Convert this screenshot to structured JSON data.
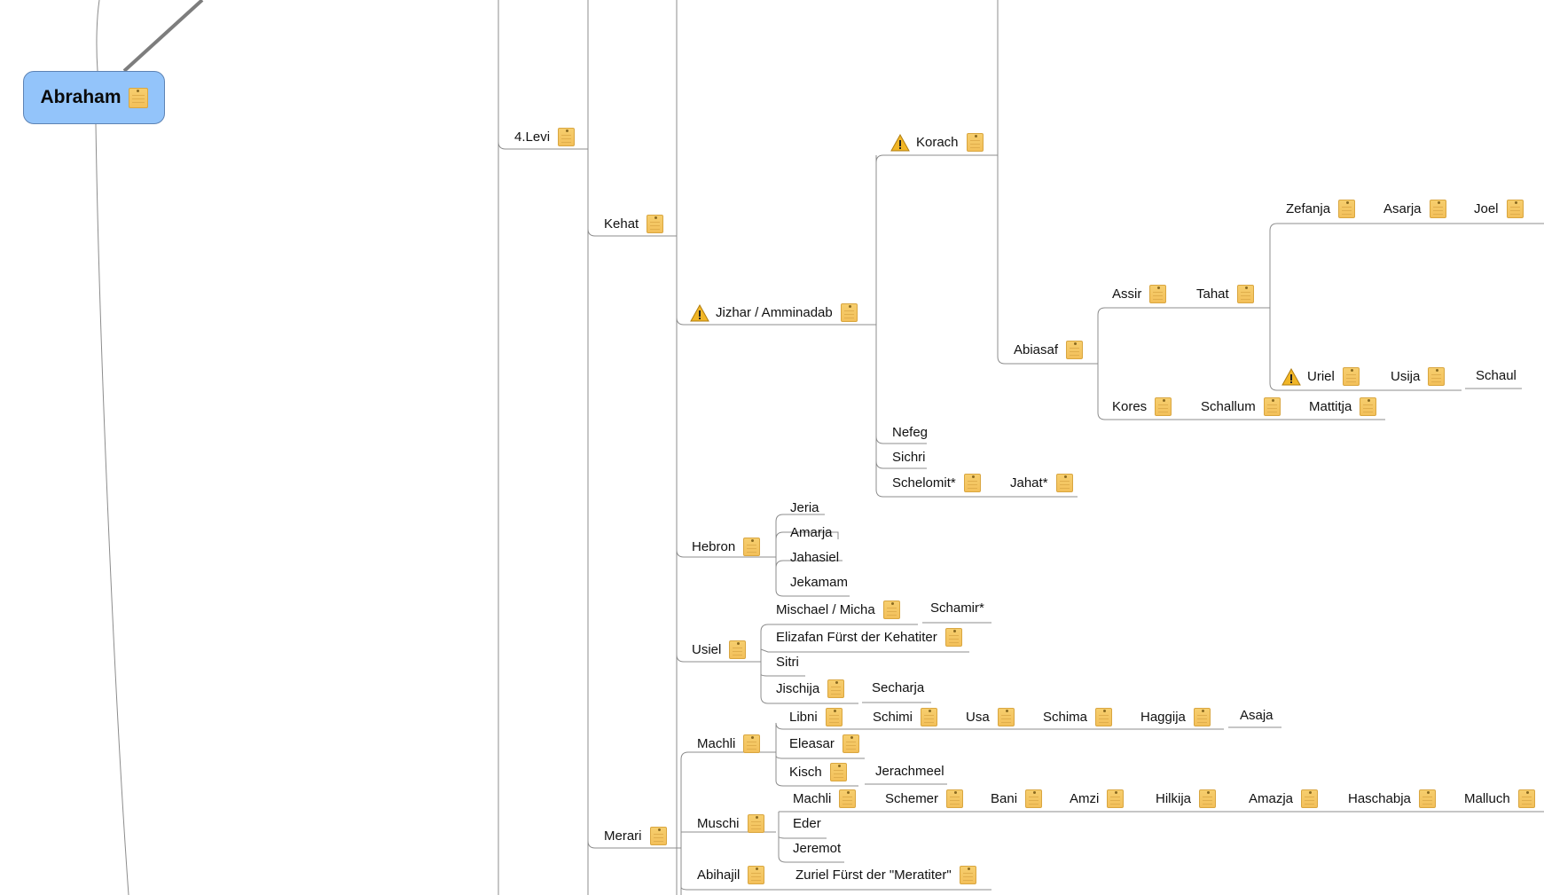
{
  "root": {
    "label": "Abraham"
  },
  "nodes": {
    "levi": "4.Levi",
    "kehat": "Kehat",
    "korach": "Korach",
    "jizhar": "Jizhar / Amminadab",
    "abiasaf": "Abiasaf",
    "assir": "Assir",
    "tahat": "Tahat",
    "zefanja": "Zefanja",
    "asarja": "Asarja",
    "joel": "Joel",
    "uriel": "Uriel",
    "usija": "Usija",
    "schaul": "Schaul",
    "kores": "Kores",
    "schallum": "Schallum",
    "mattitja": "Mattitja",
    "nefeg": "Nefeg",
    "sichri": "Sichri",
    "schelomit": "Schelomit*",
    "jahat": "Jahat*",
    "hebron": "Hebron",
    "jeria": "Jeria",
    "amarja": "Amarja",
    "jahasiel": "Jahasiel",
    "jekamam": "Jekamam",
    "usiel": "Usiel",
    "mischael": "Mischael / Micha",
    "schamir": "Schamir*",
    "elizafan": "Elizafan Fürst der Kehatiter",
    "sitri": "Sitri",
    "jischija": "Jischija",
    "secharja": "Secharja",
    "merari": "Merari",
    "machli": "Machli",
    "libni": "Libni",
    "schimi": "Schimi",
    "usa": "Usa",
    "schima": "Schima",
    "haggija": "Haggija",
    "asaja": "Asaja",
    "eleasar": "Eleasar",
    "kisch": "Kisch",
    "jerachmeel": "Jerachmeel",
    "muschi": "Muschi",
    "machli2": "Machli",
    "schemer": "Schemer",
    "bani": "Bani",
    "amzi": "Amzi",
    "hilkija": "Hilkija",
    "amazja": "Amazja",
    "haschabja": "Haschabja",
    "malluch": "Malluch",
    "eder": "Eder",
    "jeremot": "Jeremot",
    "abihajil": "Abihajil",
    "zuriel": "Zuriel Fürst der \"Meratiter\""
  },
  "icons": {
    "note": "note-icon",
    "warning": "warning-icon"
  },
  "colors": {
    "root_fill": "#93c4fa",
    "root_border": "#5d83b4",
    "line": "#8a8a8a",
    "note": "#f3c05a",
    "warning": "#f0b020"
  }
}
